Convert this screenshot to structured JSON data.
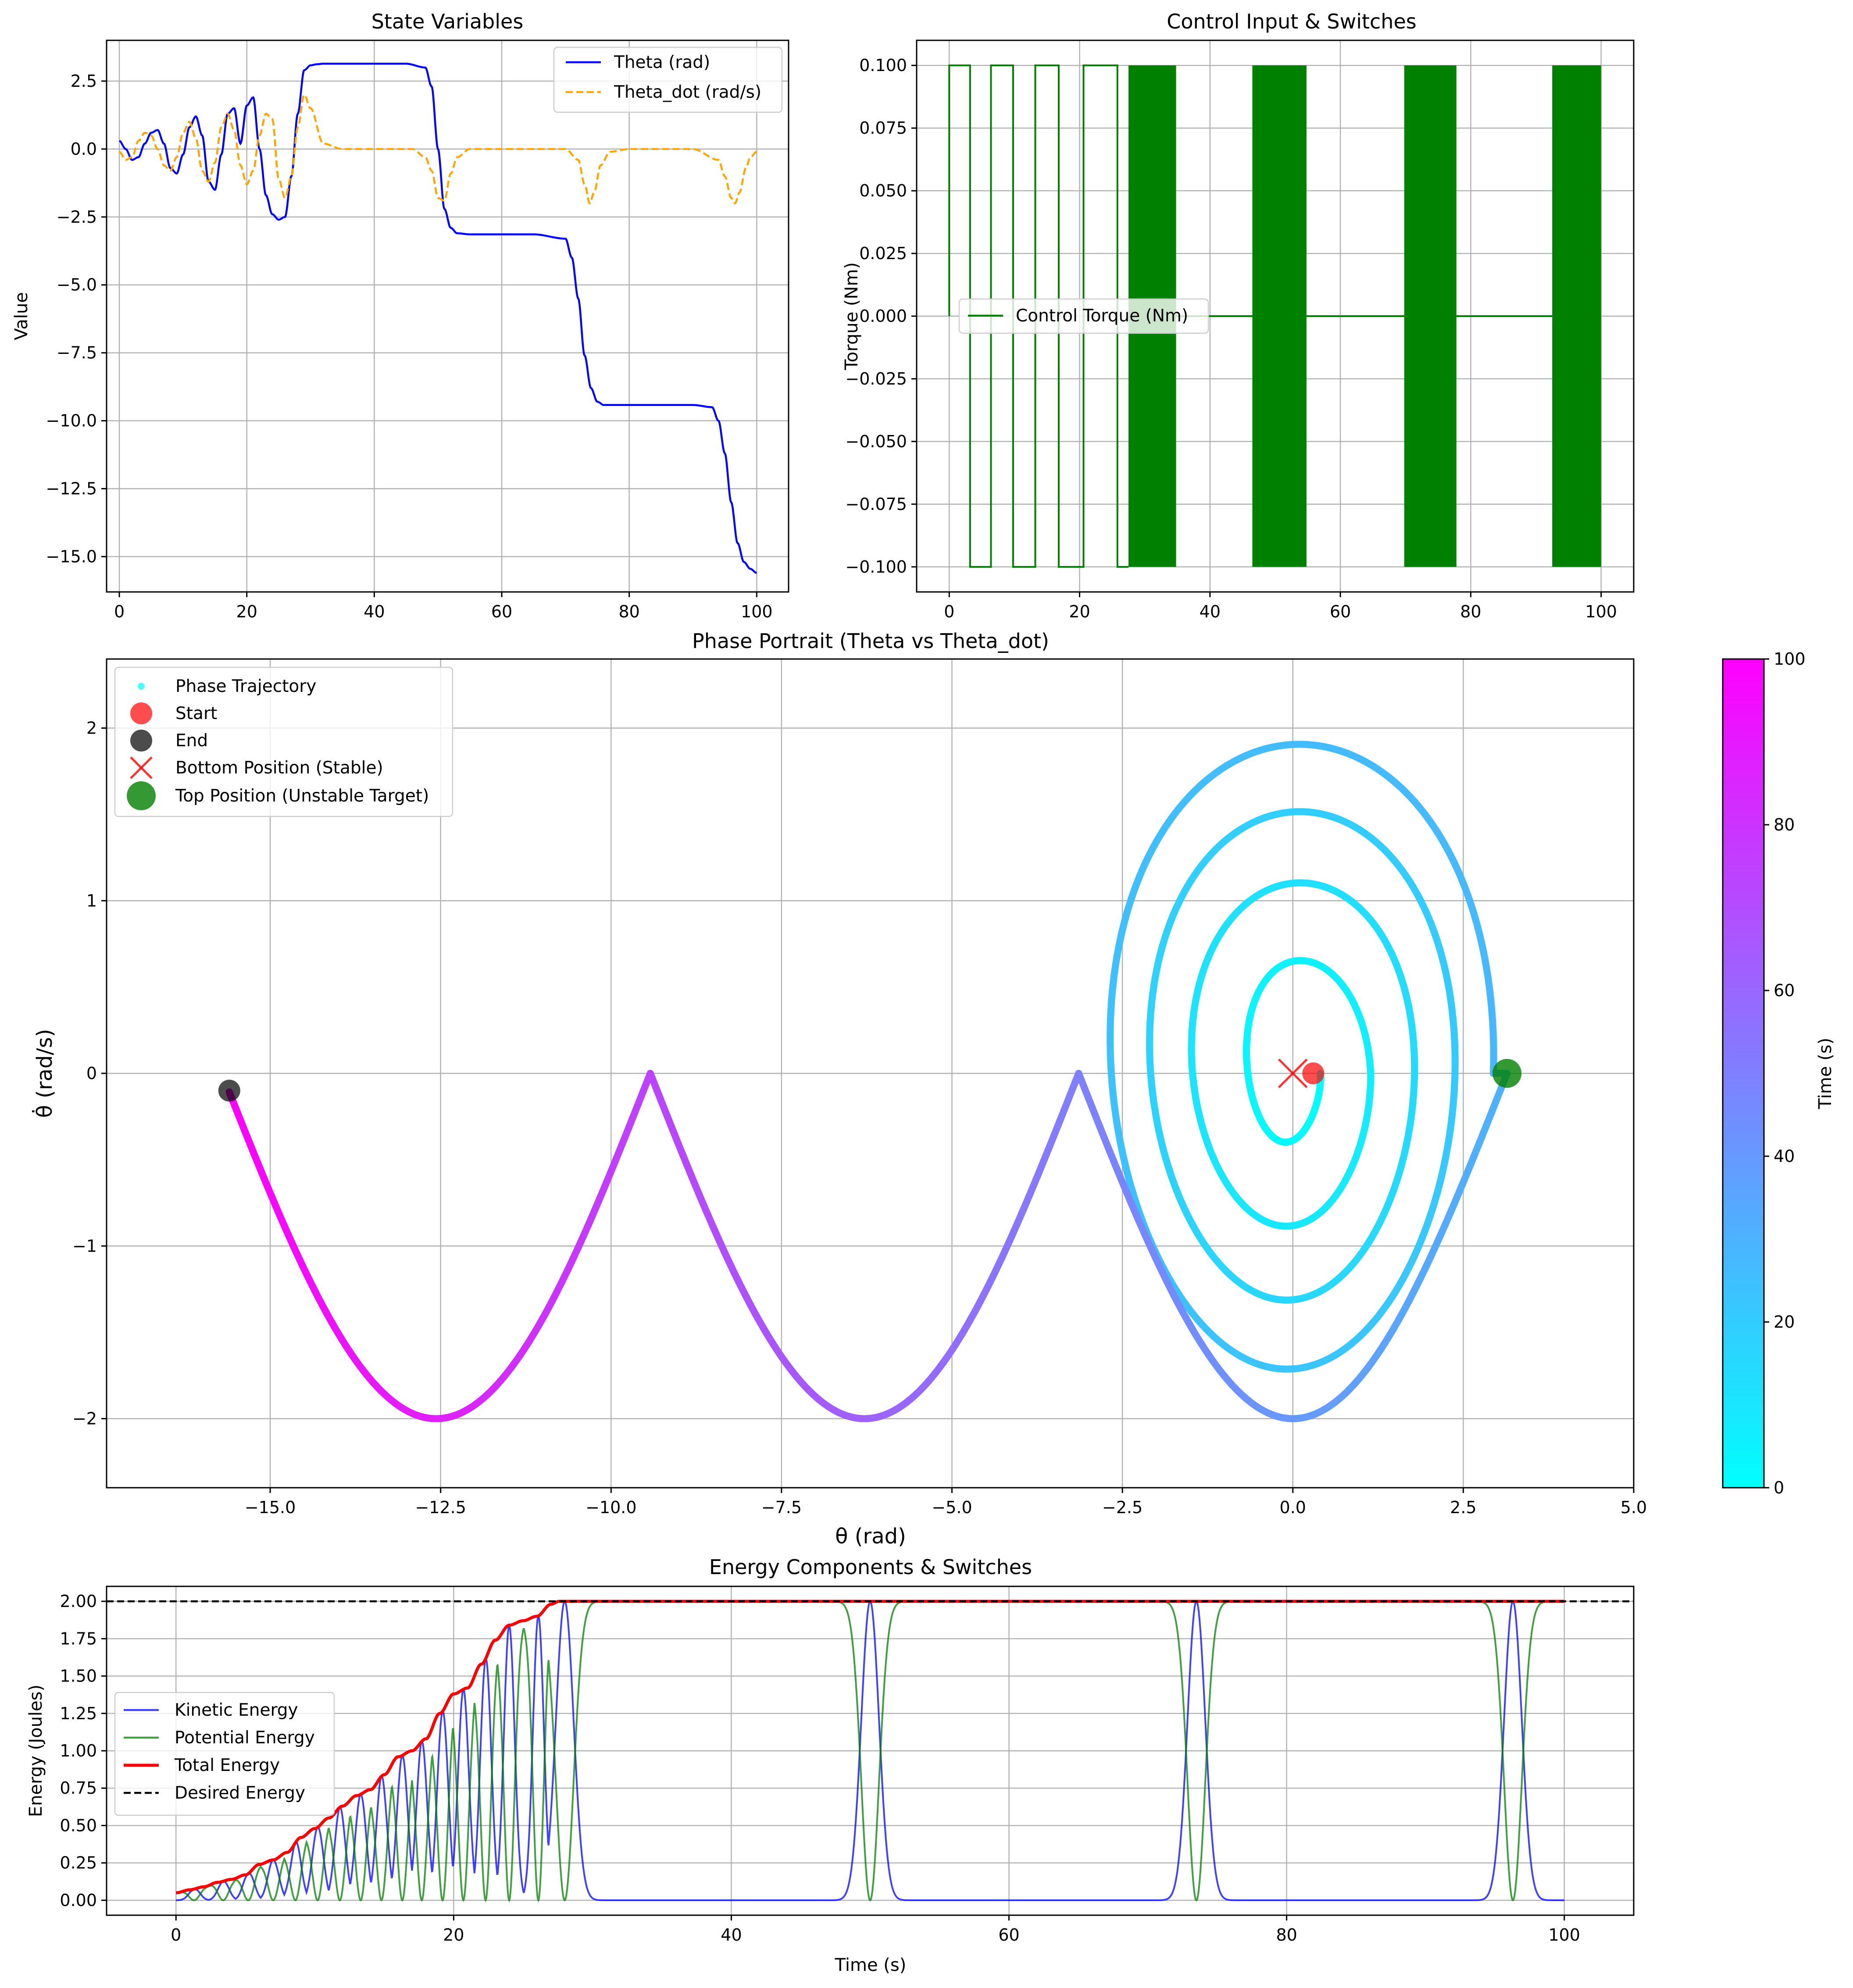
{
  "chart_data": [
    {
      "id": "state",
      "type": "line",
      "title": "State Variables",
      "xlabel": "",
      "ylabel": "Value",
      "xlim": [
        -2,
        105
      ],
      "ylim": [
        -16.3,
        4.0
      ],
      "xticks": [
        0,
        20,
        40,
        60,
        80,
        100
      ],
      "xtick_labels": [
        "0",
        "20",
        "40",
        "60",
        "80",
        "100"
      ],
      "yticks": [
        -15.0,
        -12.5,
        -10.0,
        -7.5,
        -5.0,
        -2.5,
        0.0,
        2.5
      ],
      "ytick_labels": [
        "−15.0",
        "−12.5",
        "−10.0",
        "−7.5",
        "−5.0",
        "−2.5",
        "0.0",
        "2.5"
      ],
      "grid": true,
      "legend": "upper-right",
      "series": [
        {
          "name": "Theta (rad)",
          "color": "#0000ff",
          "dash": "solid",
          "x": [
            0,
            1,
            2,
            3,
            4,
            5,
            6,
            7,
            8,
            9,
            10,
            11,
            12,
            13,
            14,
            15,
            16,
            17,
            18,
            19,
            20,
            21,
            22,
            23,
            24,
            25,
            26,
            27,
            28,
            29,
            30,
            31,
            32,
            35,
            40,
            45,
            48,
            49,
            50,
            51,
            52,
            53,
            55,
            60,
            65,
            70,
            71,
            72,
            73,
            74,
            75,
            76,
            78,
            80,
            85,
            90,
            93,
            94,
            95,
            96,
            97,
            98,
            99,
            100
          ],
          "y": [
            0.3,
            0.0,
            -0.4,
            -0.3,
            0.2,
            0.6,
            0.7,
            0.2,
            -0.7,
            -0.9,
            -0.2,
            0.8,
            1.2,
            0.5,
            -1.2,
            -1.5,
            -0.2,
            1.3,
            1.5,
            0.2,
            1.6,
            1.9,
            0.0,
            -1.7,
            -2.4,
            -2.6,
            -2.5,
            -1.0,
            1.3,
            2.9,
            3.08,
            3.12,
            3.14,
            3.14,
            3.14,
            3.14,
            3.0,
            2.3,
            0.0,
            -2.2,
            -2.9,
            -3.1,
            -3.14,
            -3.14,
            -3.14,
            -3.3,
            -4.0,
            -5.5,
            -7.6,
            -8.8,
            -9.3,
            -9.42,
            -9.42,
            -9.42,
            -9.42,
            -9.42,
            -9.5,
            -10.0,
            -11.2,
            -13.0,
            -14.5,
            -15.2,
            -15.45,
            -15.6
          ]
        },
        {
          "name": "Theta_dot (rad/s)",
          "color": "#ffa500",
          "dash": "dashed",
          "x": [
            0,
            1,
            2,
            3,
            4,
            5,
            6,
            7,
            8,
            9,
            10,
            11,
            12,
            13,
            14,
            15,
            16,
            17,
            18,
            19,
            20,
            21,
            22,
            23,
            24,
            25,
            26,
            27,
            28,
            29,
            30,
            32,
            35,
            40,
            46,
            48,
            49,
            50,
            51,
            52,
            53,
            55,
            60,
            65,
            70,
            72,
            73,
            73.8,
            74.5,
            75.5,
            77,
            80,
            85,
            90,
            94,
            95,
            96,
            96.6,
            97.3,
            98.3,
            99,
            100
          ],
          "y": [
            -0.1,
            -0.4,
            -0.3,
            0.3,
            0.6,
            0.5,
            0.0,
            -0.6,
            -0.8,
            -0.3,
            0.6,
            1.0,
            0.4,
            -0.8,
            -1.2,
            -0.5,
            0.8,
            1.3,
            0.7,
            -0.6,
            -1.3,
            -0.8,
            0.5,
            1.3,
            1.1,
            -1.1,
            -1.8,
            -1.0,
            0.8,
            2.0,
            1.5,
            0.2,
            0.0,
            0.0,
            0.0,
            -0.3,
            -0.8,
            -1.8,
            -1.9,
            -0.9,
            -0.3,
            0.0,
            0.0,
            0.0,
            0.0,
            -0.4,
            -1.3,
            -2.0,
            -1.6,
            -0.6,
            -0.1,
            0.0,
            0.0,
            0.0,
            -0.4,
            -1.0,
            -1.8,
            -2.0,
            -1.6,
            -0.7,
            -0.3,
            -0.1
          ]
        }
      ]
    },
    {
      "id": "control",
      "type": "line",
      "title": "Control Input & Switches",
      "xlabel": "",
      "ylabel": "Torque (Nm)",
      "xlim": [
        -5,
        105
      ],
      "ylim": [
        -0.11,
        0.11
      ],
      "xticks": [
        0,
        20,
        40,
        60,
        80,
        100
      ],
      "xtick_labels": [
        "0",
        "20",
        "40",
        "60",
        "80",
        "100"
      ],
      "yticks": [
        -0.1,
        -0.075,
        -0.05,
        -0.025,
        0.0,
        0.025,
        0.05,
        0.075,
        0.1
      ],
      "ytick_labels": [
        "−0.100",
        "−0.075",
        "−0.050",
        "−0.025",
        "0.000",
        "0.025",
        "0.050",
        "0.075",
        "0.100"
      ],
      "grid": true,
      "legend": "center-left",
      "series": [
        {
          "name": "Control Torque (Nm)",
          "color": "#008000",
          "switch_times": [
            0,
            3.2,
            6.4,
            9.8,
            13.2,
            16.8,
            20.6,
            25.8
          ],
          "switch_values": [
            0.1,
            -0.1,
            0.1,
            -0.1,
            0.1,
            -0.1,
            0.1,
            -0.1
          ],
          "chatter_bands": [
            [
              27.5,
              34.8
            ],
            [
              46.5,
              54.8
            ],
            [
              69.8,
              77.8
            ],
            [
              92.5,
              100
            ]
          ],
          "hold_value": 0.0
        }
      ]
    },
    {
      "id": "phase",
      "type": "scatter",
      "title": "Phase Portrait (Theta vs Theta_dot)",
      "xlabel": "θ (rad)",
      "ylabel": "θ̇ (rad/s)",
      "xlim": [
        -17.4,
        5.0
      ],
      "ylim": [
        -2.4,
        2.4
      ],
      "xticks": [
        -15.0,
        -12.5,
        -10.0,
        -7.5,
        -5.0,
        -2.5,
        0.0,
        2.5,
        5.0
      ],
      "xtick_labels": [
        "−15.0",
        "−12.5",
        "−10.0",
        "−7.5",
        "−5.0",
        "−2.5",
        "0.0",
        "2.5",
        "5.0"
      ],
      "yticks": [
        -2,
        -1,
        0,
        1,
        2
      ],
      "ytick_labels": [
        "−2",
        "−1",
        "0",
        "1",
        "2"
      ],
      "grid": true,
      "legend": "upper-left",
      "colormap": "cool",
      "colorbar": {
        "label": "Time (s)",
        "range": [
          0,
          100
        ],
        "ticks": [
          0,
          20,
          40,
          60,
          80,
          100
        ],
        "tick_labels": [
          "0",
          "20",
          "40",
          "60",
          "80",
          "100"
        ],
        "colors": [
          "#00ffff",
          "#ff00ff"
        ]
      },
      "trajectory": {
        "name": "Phase Trajectory",
        "color": "#00ffff",
        "spiral_start_theta": 0.3,
        "top_theta": 3.14159,
        "valley_minima_theta": [
          0.0,
          -6.283,
          -12.566
        ],
        "valley_min_thetadot": -2.0,
        "cusps_theta": [
          -3.14159,
          -9.42478
        ],
        "end_theta": -15.6,
        "end_thetadot": -0.1,
        "spiral_amplitudes": [
          0.62,
          1.05,
          1.52,
          2.0
        ]
      },
      "markers": [
        {
          "name": "Start",
          "x": 0.3,
          "y": 0.0,
          "color": "#ff0000",
          "shape": "circle"
        },
        {
          "name": "End",
          "x": -15.6,
          "y": -0.1,
          "color": "#000000",
          "shape": "circle"
        },
        {
          "name": "Bottom Position (Stable)",
          "x": 0.0,
          "y": 0.0,
          "color": "#ff0000",
          "shape": "x"
        },
        {
          "name": "Top Position (Unstable Target)",
          "x": 3.14159,
          "y": 0.0,
          "color": "#008000",
          "shape": "circle"
        }
      ]
    },
    {
      "id": "energy",
      "type": "line",
      "title": "Energy Components & Switches",
      "xlabel": "Time (s)",
      "ylabel": "Energy (Joules)",
      "xlim": [
        -5,
        105
      ],
      "ylim": [
        -0.1,
        2.1
      ],
      "xticks": [
        0,
        20,
        40,
        60,
        80,
        100
      ],
      "xtick_labels": [
        "0",
        "20",
        "40",
        "60",
        "80",
        "100"
      ],
      "yticks": [
        0.0,
        0.25,
        0.5,
        0.75,
        1.0,
        1.25,
        1.5,
        1.75,
        2.0
      ],
      "ytick_labels": [
        "0.00",
        "0.25",
        "0.50",
        "0.75",
        "1.00",
        "1.25",
        "1.50",
        "1.75",
        "2.00"
      ],
      "grid": true,
      "legend": "center-left",
      "series": [
        {
          "name": "Kinetic Energy",
          "color": "#0000ff"
        },
        {
          "name": "Potential Energy",
          "color": "#008000"
        },
        {
          "name": "Total Energy",
          "color": "#ff0000"
        },
        {
          "name": "Desired Energy",
          "color": "#000000",
          "value": 2.0
        }
      ],
      "total_energy": {
        "x": [
          0,
          1,
          2,
          3,
          4,
          5,
          6,
          7,
          8,
          9,
          10,
          11,
          12,
          13,
          14,
          15,
          16,
          17,
          18,
          19,
          20,
          21,
          22,
          23,
          24,
          25,
          26,
          27,
          27.6,
          100
        ],
        "y": [
          0.05,
          0.07,
          0.09,
          0.12,
          0.14,
          0.17,
          0.24,
          0.27,
          0.32,
          0.42,
          0.48,
          0.55,
          0.63,
          0.7,
          0.74,
          0.84,
          0.96,
          1.0,
          1.08,
          1.25,
          1.38,
          1.42,
          1.58,
          1.74,
          1.84,
          1.87,
          1.9,
          1.98,
          2.0,
          2.0
        ]
      },
      "energy_peaks_times": [
        1.3,
        3.4,
        5.2,
        7.0,
        8.6,
        10.2,
        11.8,
        13.3,
        14.8,
        16.3,
        17.7,
        19.2,
        20.7,
        22.3,
        24.0,
        26.1,
        28.0,
        50.0,
        73.5,
        96.3
      ]
    }
  ]
}
